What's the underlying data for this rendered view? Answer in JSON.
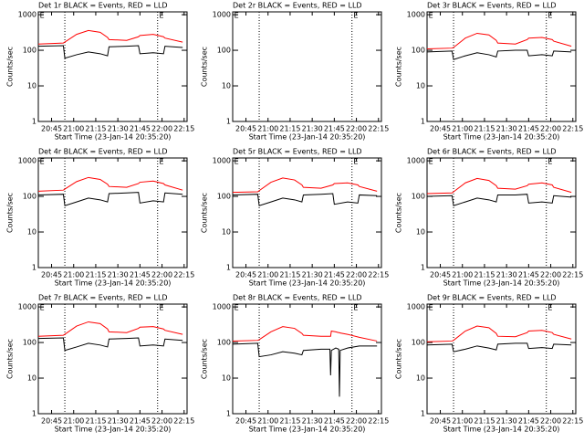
{
  "chart_data": [
    {
      "type": "line",
      "title": "Det 1r BLACK = Events, RED = LLD",
      "xlabel": "Start Time (23-Jan-14 20:35:20)",
      "ylabel": "Counts/sec",
      "log_y": true,
      "xlim": [
        1236,
        1337
      ],
      "xticks": [
        {
          "value": 1245,
          "label": "20:45"
        },
        {
          "value": 1260,
          "label": "21:00"
        },
        {
          "value": 1275,
          "label": "21:15"
        },
        {
          "value": 1290,
          "label": "21:30"
        },
        {
          "value": 1305,
          "label": "21:45"
        },
        {
          "value": 1320,
          "label": "22:00"
        },
        {
          "value": 1335,
          "label": "22:15"
        }
      ],
      "ylim": [
        1,
        1200
      ],
      "yticks": [
        1,
        10,
        100,
        1000
      ],
      "vlines": [
        1254,
        1317
      ],
      "markers": [
        {
          "x": 1237,
          "label": "E"
        },
        {
          "x": 1318,
          "label": "E"
        }
      ],
      "x": [
        1236,
        1253,
        1254,
        1262,
        1270,
        1278,
        1283,
        1284,
        1296,
        1304,
        1305,
        1314,
        1321,
        1322,
        1334
      ],
      "series": [
        {
          "color": "#ff0000",
          "values": [
            150,
            160,
            170,
            280,
            360,
            320,
            230,
            200,
            190,
            240,
            260,
            280,
            240,
            220,
            170
          ]
        },
        {
          "color": "#000000",
          "values": [
            130,
            135,
            60,
            75,
            90,
            80,
            70,
            125,
            130,
            135,
            80,
            85,
            80,
            130,
            120
          ]
        }
      ]
    },
    {
      "type": "line",
      "title": "Det 2r BLACK = Events, RED = LLD",
      "xlabel": "Start Time (23-Jan-14 20:35:20)",
      "ylabel": "Counts/sec",
      "log_y": true,
      "xlim": [
        1236,
        1337
      ],
      "xticks": [
        {
          "value": 1245,
          "label": "20:45"
        },
        {
          "value": 1260,
          "label": "21:00"
        },
        {
          "value": 1275,
          "label": "21:15"
        },
        {
          "value": 1290,
          "label": "21:30"
        },
        {
          "value": 1305,
          "label": "21:45"
        },
        {
          "value": 1320,
          "label": "22:00"
        },
        {
          "value": 1335,
          "label": "22:15"
        }
      ],
      "ylim": [
        1,
        1200
      ],
      "yticks": [
        1,
        10,
        100,
        1000
      ],
      "vlines": [
        1254,
        1317
      ],
      "markers": [
        {
          "x": 1237,
          "label": "E"
        },
        {
          "x": 1318,
          "label": "E"
        }
      ],
      "x": [],
      "series": []
    },
    {
      "type": "line",
      "title": "Det 3r BLACK = Events, RED = LLD",
      "xlabel": "Start Time (23-Jan-14 20:35:20)",
      "ylabel": "Counts/sec",
      "log_y": true,
      "xlim": [
        1236,
        1337
      ],
      "xticks": [
        {
          "value": 1245,
          "label": "20:45"
        },
        {
          "value": 1260,
          "label": "21:00"
        },
        {
          "value": 1275,
          "label": "21:15"
        },
        {
          "value": 1290,
          "label": "21:30"
        },
        {
          "value": 1305,
          "label": "21:45"
        },
        {
          "value": 1320,
          "label": "22:00"
        },
        {
          "value": 1335,
          "label": "22:15"
        }
      ],
      "ylim": [
        1,
        1200
      ],
      "yticks": [
        1,
        10,
        100,
        1000
      ],
      "vlines": [
        1254,
        1317
      ],
      "markers": [
        {
          "x": 1237,
          "label": "E"
        },
        {
          "x": 1318,
          "label": "E"
        }
      ],
      "x": [
        1236,
        1253,
        1254,
        1262,
        1270,
        1278,
        1283,
        1284,
        1296,
        1304,
        1305,
        1314,
        1321,
        1322,
        1334
      ],
      "series": [
        {
          "color": "#ff0000",
          "values": [
            110,
            115,
            120,
            220,
            300,
            270,
            190,
            160,
            150,
            200,
            220,
            230,
            200,
            180,
            130
          ]
        },
        {
          "color": "#000000",
          "values": [
            90,
            95,
            55,
            70,
            85,
            75,
            65,
            95,
            100,
            100,
            70,
            75,
            70,
            95,
            90
          ]
        }
      ]
    },
    {
      "type": "line",
      "title": "Det 4r BLACK = Events, RED = LLD",
      "xlabel": "Start Time (23-Jan-14 20:35:20)",
      "ylabel": "Counts/sec",
      "log_y": true,
      "xlim": [
        1236,
        1337
      ],
      "xticks": [
        {
          "value": 1245,
          "label": "20:45"
        },
        {
          "value": 1260,
          "label": "21:00"
        },
        {
          "value": 1275,
          "label": "21:15"
        },
        {
          "value": 1290,
          "label": "21:30"
        },
        {
          "value": 1305,
          "label": "21:45"
        },
        {
          "value": 1320,
          "label": "22:00"
        },
        {
          "value": 1335,
          "label": "22:15"
        }
      ],
      "ylim": [
        1,
        1200
      ],
      "yticks": [
        1,
        10,
        100,
        1000
      ],
      "vlines": [
        1254,
        1317
      ],
      "markers": [
        {
          "x": 1237,
          "label": "E"
        },
        {
          "x": 1318,
          "label": "E"
        }
      ],
      "x": [
        1236,
        1253,
        1254,
        1262,
        1270,
        1278,
        1283,
        1284,
        1296,
        1304,
        1305,
        1314,
        1321,
        1322,
        1334
      ],
      "series": [
        {
          "color": "#ff0000",
          "values": [
            140,
            150,
            160,
            260,
            340,
            300,
            220,
            190,
            180,
            230,
            250,
            270,
            230,
            210,
            150
          ]
        },
        {
          "color": "#000000",
          "values": [
            110,
            115,
            55,
            70,
            90,
            80,
            70,
            120,
            125,
            130,
            65,
            75,
            70,
            125,
            115
          ]
        }
      ]
    },
    {
      "type": "line",
      "title": "Det 5r BLACK = Events, RED = LLD",
      "xlabel": "Start Time (23-Jan-14 20:35:20)",
      "ylabel": "Counts/sec",
      "log_y": true,
      "xlim": [
        1236,
        1337
      ],
      "xticks": [
        {
          "value": 1245,
          "label": "20:45"
        },
        {
          "value": 1260,
          "label": "21:00"
        },
        {
          "value": 1275,
          "label": "21:15"
        },
        {
          "value": 1290,
          "label": "21:30"
        },
        {
          "value": 1305,
          "label": "21:45"
        },
        {
          "value": 1320,
          "label": "22:00"
        },
        {
          "value": 1335,
          "label": "22:15"
        }
      ],
      "ylim": [
        1,
        1200
      ],
      "yticks": [
        1,
        10,
        100,
        1000
      ],
      "vlines": [
        1254,
        1317
      ],
      "markers": [
        {
          "x": 1237,
          "label": "E"
        },
        {
          "x": 1318,
          "label": "E"
        }
      ],
      "x": [
        1236,
        1253,
        1254,
        1262,
        1270,
        1278,
        1283,
        1284,
        1296,
        1304,
        1305,
        1314,
        1321,
        1322,
        1334
      ],
      "series": [
        {
          "color": "#ff0000",
          "values": [
            130,
            135,
            145,
            250,
            330,
            290,
            210,
            180,
            170,
            210,
            230,
            240,
            210,
            190,
            140
          ]
        },
        {
          "color": "#000000",
          "values": [
            110,
            115,
            55,
            70,
            90,
            80,
            70,
            110,
            115,
            120,
            60,
            70,
            65,
            110,
            105
          ]
        }
      ]
    },
    {
      "type": "line",
      "title": "Det 6r BLACK = Events, RED = LLD",
      "xlabel": "Start Time (23-Jan-14 20:35:20)",
      "ylabel": "Counts/sec",
      "log_y": true,
      "xlim": [
        1236,
        1337
      ],
      "xticks": [
        {
          "value": 1245,
          "label": "20:45"
        },
        {
          "value": 1260,
          "label": "21:00"
        },
        {
          "value": 1275,
          "label": "21:15"
        },
        {
          "value": 1290,
          "label": "21:30"
        },
        {
          "value": 1305,
          "label": "21:45"
        },
        {
          "value": 1320,
          "label": "22:00"
        },
        {
          "value": 1335,
          "label": "22:15"
        }
      ],
      "ylim": [
        1,
        1200
      ],
      "yticks": [
        1,
        10,
        100,
        1000
      ],
      "vlines": [
        1254,
        1317
      ],
      "markers": [
        {
          "x": 1237,
          "label": "E"
        },
        {
          "x": 1318,
          "label": "E"
        }
      ],
      "x": [
        1236,
        1253,
        1254,
        1262,
        1270,
        1278,
        1283,
        1284,
        1296,
        1304,
        1305,
        1314,
        1321,
        1322,
        1334
      ],
      "series": [
        {
          "color": "#ff0000",
          "values": [
            120,
            125,
            135,
            240,
            320,
            280,
            200,
            170,
            160,
            200,
            220,
            240,
            210,
            180,
            130
          ]
        },
        {
          "color": "#000000",
          "values": [
            100,
            105,
            55,
            70,
            90,
            80,
            70,
            110,
            110,
            115,
            65,
            70,
            65,
            105,
            95
          ]
        }
      ]
    },
    {
      "type": "line",
      "title": "Det 7r BLACK = Events, RED = LLD",
      "xlabel": "Start Time (23-Jan-14 20:35:20)",
      "ylabel": "Counts/sec",
      "log_y": true,
      "xlim": [
        1236,
        1337
      ],
      "xticks": [
        {
          "value": 1245,
          "label": "20:45"
        },
        {
          "value": 1260,
          "label": "21:00"
        },
        {
          "value": 1275,
          "label": "21:15"
        },
        {
          "value": 1290,
          "label": "21:30"
        },
        {
          "value": 1305,
          "label": "21:45"
        },
        {
          "value": 1320,
          "label": "22:00"
        },
        {
          "value": 1335,
          "label": "22:15"
        }
      ],
      "ylim": [
        1,
        1200
      ],
      "yticks": [
        1,
        10,
        100,
        1000
      ],
      "vlines": [
        1254,
        1317
      ],
      "markers": [
        {
          "x": 1237,
          "label": "E"
        },
        {
          "x": 1318,
          "label": "E"
        }
      ],
      "x": [
        1236,
        1253,
        1254,
        1262,
        1270,
        1278,
        1283,
        1284,
        1296,
        1304,
        1305,
        1314,
        1321,
        1322,
        1334
      ],
      "series": [
        {
          "color": "#ff0000",
          "values": [
            150,
            160,
            170,
            290,
            380,
            340,
            240,
            200,
            190,
            250,
            270,
            280,
            240,
            220,
            170
          ]
        },
        {
          "color": "#000000",
          "values": [
            130,
            135,
            60,
            75,
            95,
            85,
            75,
            125,
            130,
            135,
            80,
            85,
            80,
            125,
            115
          ]
        }
      ]
    },
    {
      "type": "line",
      "title": "Det 8r BLACK = Events, RED = LLD",
      "xlabel": "Start Time (23-Jan-14 20:35:20)",
      "ylabel": "Counts/sec",
      "log_y": true,
      "xlim": [
        1236,
        1337
      ],
      "xticks": [
        {
          "value": 1245,
          "label": "20:45"
        },
        {
          "value": 1260,
          "label": "21:00"
        },
        {
          "value": 1275,
          "label": "21:15"
        },
        {
          "value": 1290,
          "label": "21:30"
        },
        {
          "value": 1305,
          "label": "21:45"
        },
        {
          "value": 1320,
          "label": "22:00"
        },
        {
          "value": 1335,
          "label": "22:15"
        }
      ],
      "ylim": [
        1,
        1200
      ],
      "yticks": [
        1,
        10,
        100,
        1000
      ],
      "vlines": [
        1254,
        1317
      ],
      "markers": [
        {
          "x": 1237,
          "label": "E"
        },
        {
          "x": 1318,
          "label": "E"
        }
      ],
      "x": [
        1236,
        1253,
        1254,
        1262,
        1270,
        1278,
        1283,
        1284,
        1296,
        1302,
        1302.5,
        1303,
        1306,
        1308,
        1308.5,
        1309,
        1314,
        1322,
        1334
      ],
      "series": [
        {
          "color": "#ff0000",
          "values": [
            110,
            115,
            120,
            200,
            280,
            250,
            180,
            160,
            150,
            150,
            150,
            210,
            200,
            190,
            190,
            185,
            170,
            140,
            110
          ]
        },
        {
          "color": "#000000",
          "values": [
            90,
            95,
            40,
            45,
            55,
            50,
            45,
            60,
            65,
            65,
            12,
            60,
            70,
            65,
            3,
            60,
            70,
            80,
            80
          ]
        }
      ]
    },
    {
      "type": "line",
      "title": "Det 9r BLACK = Events, RED = LLD",
      "xlabel": "Start Time (23-Jan-14 20:35:20)",
      "ylabel": "Counts/sec",
      "log_y": true,
      "xlim": [
        1236,
        1337
      ],
      "xticks": [
        {
          "value": 1245,
          "label": "20:45"
        },
        {
          "value": 1260,
          "label": "21:00"
        },
        {
          "value": 1275,
          "label": "21:15"
        },
        {
          "value": 1290,
          "label": "21:30"
        },
        {
          "value": 1305,
          "label": "21:45"
        },
        {
          "value": 1320,
          "label": "22:00"
        },
        {
          "value": 1335,
          "label": "22:15"
        }
      ],
      "ylim": [
        1,
        1200
      ],
      "yticks": [
        1,
        10,
        100,
        1000
      ],
      "vlines": [
        1254,
        1317
      ],
      "markers": [
        {
          "x": 1237,
          "label": "E"
        },
        {
          "x": 1318,
          "label": "E"
        }
      ],
      "x": [
        1236,
        1253,
        1254,
        1262,
        1270,
        1278,
        1283,
        1284,
        1296,
        1304,
        1305,
        1314,
        1321,
        1322,
        1334
      ],
      "series": [
        {
          "color": "#ff0000",
          "values": [
            105,
            110,
            115,
            210,
            290,
            260,
            180,
            150,
            145,
            190,
            210,
            220,
            190,
            170,
            125
          ]
        },
        {
          "color": "#000000",
          "values": [
            85,
            90,
            55,
            65,
            80,
            70,
            62,
            90,
            95,
            95,
            68,
            72,
            68,
            90,
            85
          ]
        }
      ]
    }
  ]
}
